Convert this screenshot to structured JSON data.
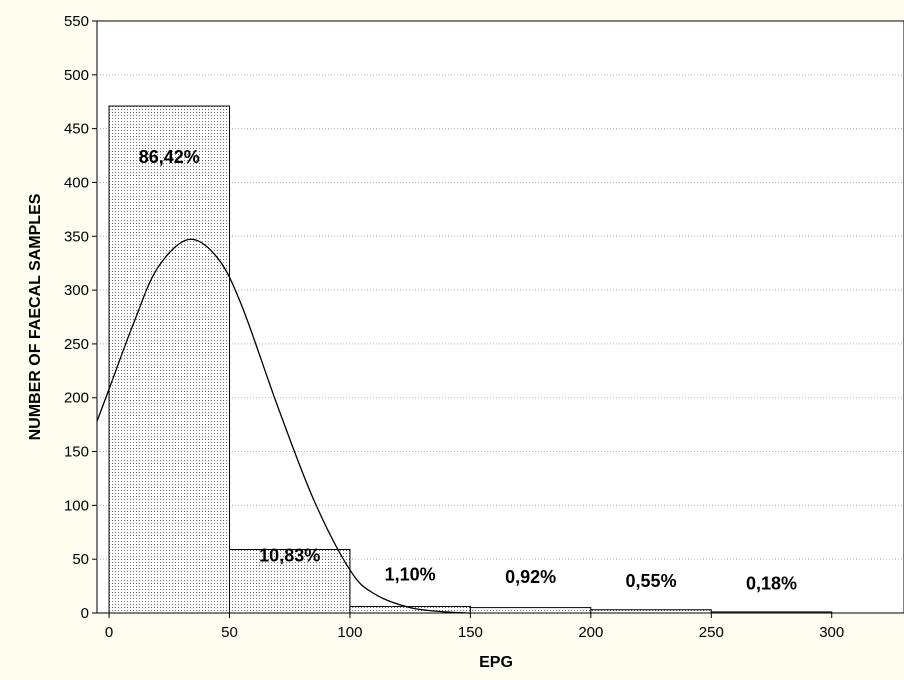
{
  "chart_data": {
    "type": "bar",
    "subtype": "histogram",
    "title": "",
    "xlabel": "EPG",
    "ylabel": "NUMBER OF FAECAL SAMPLES",
    "xlim": [
      -5,
      330
    ],
    "ylim": [
      0,
      550
    ],
    "x_ticks": [
      0,
      50,
      100,
      150,
      200,
      250,
      300
    ],
    "y_ticks": [
      0,
      50,
      100,
      150,
      200,
      250,
      300,
      350,
      400,
      450,
      500,
      550
    ],
    "bins": [
      {
        "from": 0,
        "to": 50,
        "value": 471,
        "label": "86,42%"
      },
      {
        "from": 50,
        "to": 100,
        "value": 59,
        "label": "10,83%"
      },
      {
        "from": 100,
        "to": 150,
        "value": 6,
        "label": "1,10%"
      },
      {
        "from": 150,
        "to": 200,
        "value": 5,
        "label": "0,92%"
      },
      {
        "from": 200,
        "to": 250,
        "value": 3,
        "label": "0,55%"
      },
      {
        "from": 250,
        "to": 300,
        "value": 1,
        "label": "0,18%"
      }
    ],
    "label_positions": [
      {
        "x": 25,
        "y": 418
      },
      {
        "x": 75,
        "y": 48
      },
      {
        "x": 125,
        "y": 30
      },
      {
        "x": 175,
        "y": 28
      },
      {
        "x": 225,
        "y": 24
      },
      {
        "x": 275,
        "y": 22
      }
    ],
    "fit_curve": {
      "type": "normal",
      "points": [
        [
          -5,
          178
        ],
        [
          0,
          208
        ],
        [
          10,
          268
        ],
        [
          20,
          320
        ],
        [
          33,
          347
        ],
        [
          45,
          330
        ],
        [
          55,
          286
        ],
        [
          70,
          192
        ],
        [
          85,
          105
        ],
        [
          100,
          40
        ],
        [
          110,
          18
        ],
        [
          125,
          5
        ],
        [
          140,
          1
        ],
        [
          150,
          0
        ]
      ]
    },
    "grid": true
  }
}
